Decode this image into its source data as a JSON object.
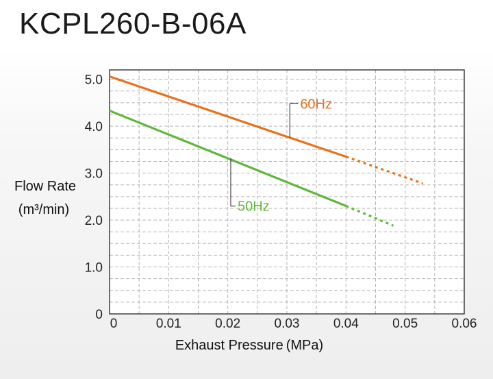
{
  "title": "KCPL260-B-06A",
  "chart_data": {
    "type": "line",
    "title": "KCPL260-B-06A",
    "xlabel": "Exhaust Pressure (MPa)",
    "ylabel_line1": "Flow Rate",
    "ylabel_line2": "(m³/min)",
    "xlim": [
      0,
      0.06
    ],
    "ylim": [
      0,
      5.2
    ],
    "x_ticks": [
      0,
      0.01,
      0.02,
      0.03,
      0.04,
      0.05,
      0.06
    ],
    "x_tick_labels": [
      "0",
      "0.01",
      "0.02",
      "0.03",
      "0.04",
      "0.05",
      "0.06"
    ],
    "y_ticks": [
      0,
      1,
      2,
      3,
      4,
      5
    ],
    "y_tick_labels": [
      "0",
      "1.0",
      "2.0",
      "3.0",
      "4.0",
      "5.0"
    ],
    "grid": true,
    "series": [
      {
        "name": "60Hz",
        "color": "#e8711e",
        "solid": [
          [
            0,
            5.06
          ],
          [
            0.04,
            3.35
          ]
        ],
        "dotted": [
          [
            0.04,
            3.35
          ],
          [
            0.053,
            2.78
          ]
        ],
        "label_anchor": [
          0.0305,
          3.75
        ]
      },
      {
        "name": "50Hz",
        "color": "#5fb83a",
        "solid": [
          [
            0,
            4.33
          ],
          [
            0.04,
            2.3
          ]
        ],
        "dotted": [
          [
            0.04,
            2.3
          ],
          [
            0.048,
            1.88
          ]
        ],
        "label_anchor": [
          0.0205,
          3.32
        ]
      }
    ]
  }
}
